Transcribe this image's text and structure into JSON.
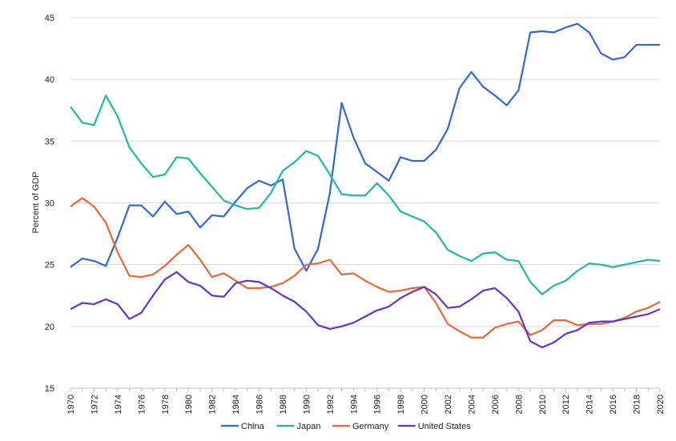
{
  "chart_data": {
    "type": "line",
    "title": "",
    "xlabel": "",
    "ylabel": "Percent of GDP",
    "ylim": [
      15,
      45
    ],
    "yticks": [
      15,
      20,
      25,
      30,
      35,
      40,
      45
    ],
    "xlim": [
      1970,
      2020
    ],
    "xtick_step": 2,
    "grid": "horizontal",
    "legend_position": "bottom",
    "x": [
      1970,
      1971,
      1972,
      1973,
      1974,
      1975,
      1976,
      1977,
      1978,
      1979,
      1980,
      1981,
      1982,
      1983,
      1984,
      1985,
      1986,
      1987,
      1988,
      1989,
      1990,
      1991,
      1992,
      1993,
      1994,
      1995,
      1996,
      1997,
      1998,
      1999,
      2000,
      2001,
      2002,
      2003,
      2004,
      2005,
      2006,
      2007,
      2008,
      2009,
      2010,
      2011,
      2012,
      2013,
      2014,
      2015,
      2016,
      2017,
      2018,
      2019,
      2020
    ],
    "series": [
      {
        "name": "China",
        "color": "#3366dd",
        "values": [
          24.8,
          25.5,
          25.3,
          24.9,
          27.2,
          29.8,
          29.8,
          28.9,
          30.1,
          29.1,
          29.3,
          28.0,
          29.0,
          28.9,
          30.1,
          31.2,
          31.8,
          31.4,
          31.9,
          26.3,
          24.5,
          26.3,
          30.8,
          38.1,
          35.3,
          33.2,
          32.5,
          31.8,
          33.7,
          33.4,
          33.4,
          34.3,
          36.0,
          39.3,
          40.6,
          39.4,
          38.7,
          37.9,
          39.1,
          43.8,
          43.9,
          43.8,
          44.2,
          44.5,
          43.8,
          42.1,
          41.6,
          41.8,
          42.8,
          42.8,
          42.8
        ]
      },
      {
        "name": "Japan",
        "color": "#1fb8a6",
        "values": [
          37.8,
          36.5,
          36.3,
          38.7,
          37.0,
          34.5,
          33.2,
          32.1,
          32.3,
          33.7,
          33.6,
          32.4,
          31.3,
          30.2,
          29.8,
          29.5,
          29.6,
          30.8,
          32.6,
          33.3,
          34.2,
          33.8,
          32.3,
          30.7,
          30.6,
          30.6,
          31.6,
          30.6,
          29.3,
          28.9,
          28.5,
          27.6,
          26.2,
          25.7,
          25.3,
          25.9,
          26.0,
          25.4,
          25.3,
          23.6,
          22.6,
          23.3,
          23.7,
          24.5,
          25.1,
          25.0,
          24.8,
          25.0,
          25.2,
          25.4,
          25.3
        ]
      },
      {
        "name": "Germany",
        "color": "#ee6633",
        "values": [
          29.7,
          30.4,
          29.7,
          28.4,
          26.0,
          24.1,
          24.0,
          24.2,
          24.9,
          25.8,
          26.6,
          25.4,
          24.0,
          24.3,
          23.7,
          23.1,
          23.1,
          23.2,
          23.5,
          24.1,
          25.0,
          25.1,
          25.4,
          24.2,
          24.3,
          23.7,
          23.2,
          22.8,
          22.9,
          23.1,
          23.2,
          21.9,
          20.2,
          19.6,
          19.1,
          19.1,
          19.9,
          20.2,
          20.4,
          19.3,
          19.7,
          20.5,
          20.5,
          20.1,
          20.2,
          20.2,
          20.4,
          20.7,
          21.2,
          21.5,
          22.0
        ]
      },
      {
        "name": "United States",
        "color": "#6633cc",
        "values": [
          21.4,
          21.9,
          21.8,
          22.2,
          21.8,
          20.6,
          21.1,
          22.5,
          23.8,
          24.4,
          23.6,
          23.3,
          22.5,
          22.4,
          23.5,
          23.7,
          23.6,
          23.1,
          22.5,
          22.0,
          21.2,
          20.1,
          19.8,
          20.0,
          20.3,
          20.8,
          21.3,
          21.6,
          22.3,
          22.8,
          23.2,
          22.6,
          21.5,
          21.6,
          22.2,
          22.9,
          23.1,
          22.3,
          21.2,
          18.8,
          18.3,
          18.7,
          19.4,
          19.7,
          20.3,
          20.4,
          20.4,
          20.6,
          20.8,
          21.0,
          21.4
        ]
      }
    ]
  }
}
